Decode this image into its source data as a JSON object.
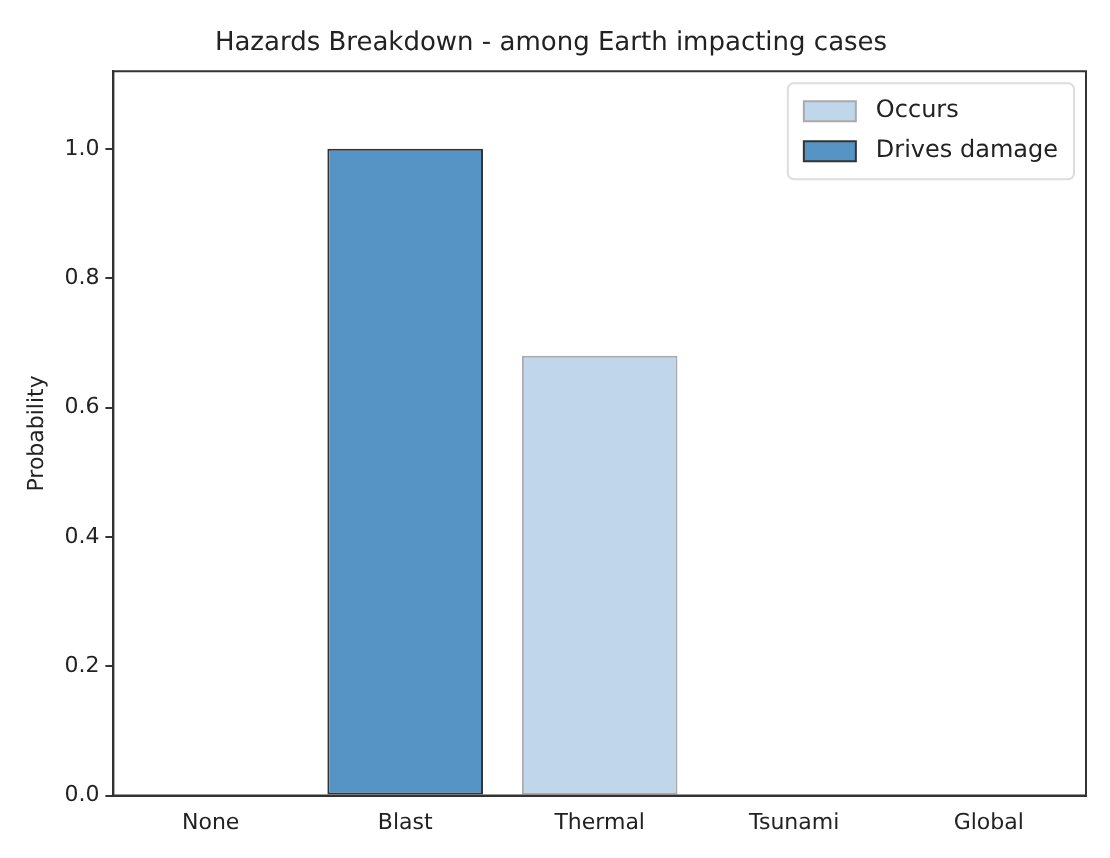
{
  "chart_data": {
    "type": "bar",
    "title": "Hazards Breakdown - among Earth impacting cases",
    "ylabel": "Probability",
    "categories": [
      "None",
      "Blast",
      "Thermal",
      "Tsunami",
      "Global"
    ],
    "series": [
      {
        "name": "Occurs",
        "color": "#c0d6ea",
        "values": [
          0,
          null,
          0.68,
          0,
          0
        ]
      },
      {
        "name": "Drives damage",
        "color": "#5694c6",
        "values": [
          0,
          1.0,
          0,
          0,
          0
        ]
      }
    ],
    "ylim": [
      0,
      1.12
    ],
    "yticks": [
      {
        "value": 0,
        "label": "0.0"
      },
      0.2,
      0.4,
      0.6,
      0.8,
      {
        "value": 1,
        "label": "1.0"
      }
    ],
    "grid": false,
    "legend": "top right"
  }
}
